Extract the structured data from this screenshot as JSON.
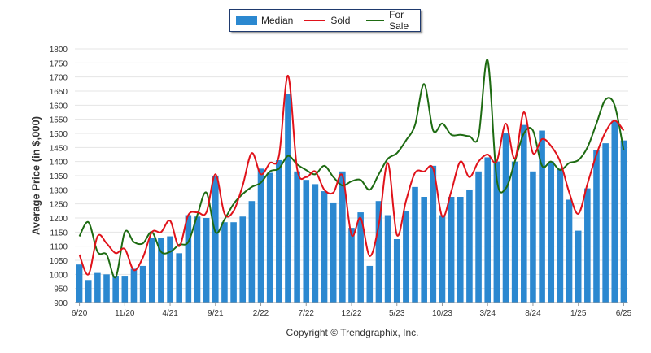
{
  "chart_data": {
    "type": "bar+line",
    "ylabel": "Average Price (in $,000)",
    "ylim": [
      900,
      1800
    ],
    "yticks": [
      900,
      950,
      1000,
      1050,
      1100,
      1150,
      1200,
      1250,
      1300,
      1350,
      1400,
      1450,
      1500,
      1550,
      1600,
      1650,
      1700,
      1750,
      1800
    ],
    "grid": true,
    "legend": "top-center",
    "xtick_labels": [
      {
        "index": 0,
        "label": "6/20"
      },
      {
        "index": 5,
        "label": "11/20"
      },
      {
        "index": 10,
        "label": "4/21"
      },
      {
        "index": 15,
        "label": "9/21"
      },
      {
        "index": 20,
        "label": "2/22"
      },
      {
        "index": 25,
        "label": "7/22"
      },
      {
        "index": 30,
        "label": "12/22"
      },
      {
        "index": 35,
        "label": "5/23"
      },
      {
        "index": 40,
        "label": "10/23"
      },
      {
        "index": 45,
        "label": "3/24"
      },
      {
        "index": 50,
        "label": "8/24"
      },
      {
        "index": 55,
        "label": "1/25"
      },
      {
        "index": 60,
        "label": "6/25"
      }
    ],
    "series": [
      {
        "name": "Median",
        "kind": "bar",
        "color": "#2b88d0",
        "values": [
          1035,
          980,
          1005,
          1000,
          995,
          995,
          1020,
          1030,
          1130,
          1130,
          1135,
          1075,
          1210,
          1205,
          1200,
          1350,
          1185,
          1185,
          1205,
          1260,
          1375,
          1360,
          1405,
          1640,
          1365,
          1335,
          1320,
          1295,
          1255,
          1365,
          1165,
          1220,
          1030,
          1260,
          1210,
          1125,
          1225,
          1310,
          1275,
          1385,
          1210,
          1275,
          1275,
          1300,
          1365,
          1415,
          1400,
          1500,
          1400,
          1530,
          1365,
          1510,
          1400,
          1375,
          1265,
          1155,
          1305,
          1440,
          1465,
          1545,
          1475
        ]
      },
      {
        "name": "Sold",
        "kind": "line",
        "color": "#e0121a",
        "values": [
          1070,
          1000,
          1135,
          1110,
          1075,
          1090,
          1015,
          1060,
          1150,
          1150,
          1190,
          1100,
          1210,
          1220,
          1220,
          1355,
          1215,
          1225,
          1315,
          1430,
          1355,
          1395,
          1420,
          1705,
          1375,
          1345,
          1365,
          1300,
          1290,
          1350,
          1140,
          1200,
          1065,
          1175,
          1395,
          1140,
          1260,
          1360,
          1365,
          1375,
          1205,
          1295,
          1400,
          1345,
          1400,
          1425,
          1400,
          1535,
          1410,
          1575,
          1430,
          1480,
          1455,
          1400,
          1290,
          1215,
          1320,
          1425,
          1505,
          1545,
          1510
        ]
      },
      {
        "name": "For Sale",
        "kind": "line",
        "color": "#1e6b12",
        "values": [
          1135,
          1185,
          1080,
          1070,
          990,
          1150,
          1115,
          1110,
          1150,
          1080,
          1080,
          1105,
          1115,
          1210,
          1290,
          1150,
          1195,
          1250,
          1285,
          1310,
          1325,
          1365,
          1375,
          1420,
          1390,
          1370,
          1355,
          1385,
          1345,
          1315,
          1330,
          1335,
          1300,
          1355,
          1410,
          1430,
          1475,
          1530,
          1675,
          1510,
          1535,
          1495,
          1495,
          1490,
          1490,
          1760,
          1340,
          1305,
          1400,
          1500,
          1510,
          1385,
          1400,
          1370,
          1395,
          1405,
          1450,
          1535,
          1620,
          1600,
          1440
        ]
      }
    ]
  },
  "footer": {
    "copyright": "Copyright © Trendgraphix, Inc."
  }
}
